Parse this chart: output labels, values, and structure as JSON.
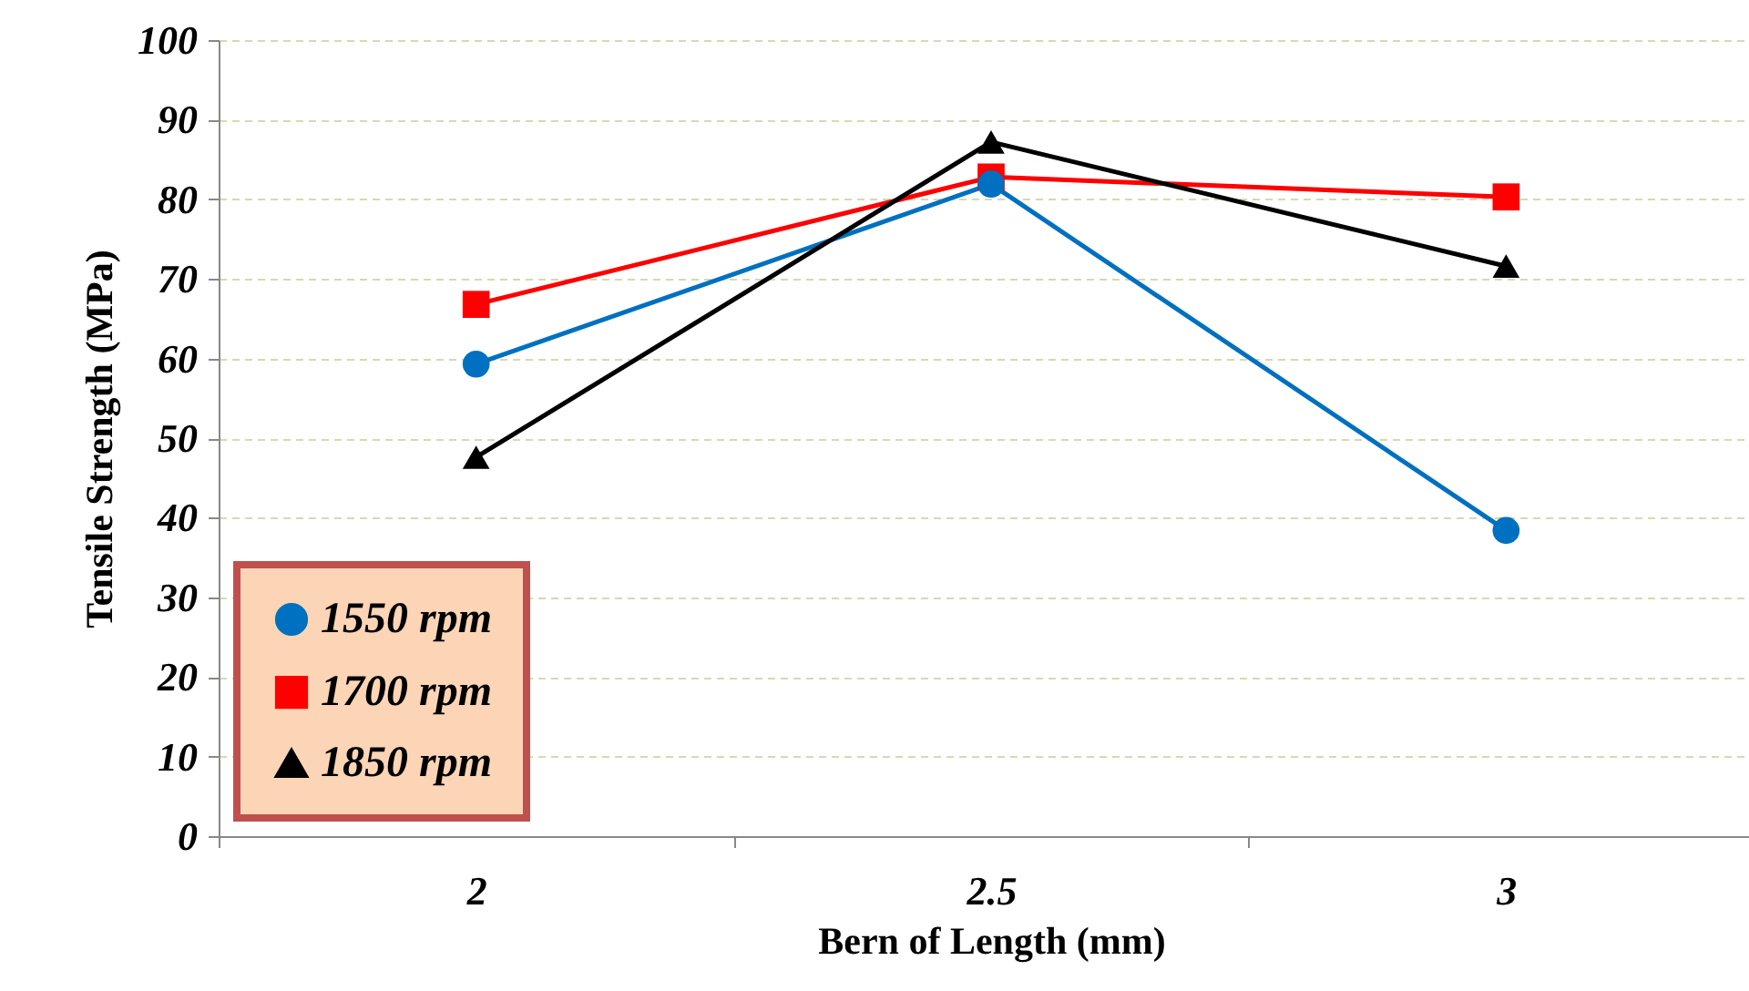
{
  "chart_data": {
    "type": "line",
    "xlabel": "Bern of Length (mm)",
    "ylabel": "Tensile Strength (MPa)",
    "categories": [
      "2",
      "2.5",
      "3"
    ],
    "series": [
      {
        "name": "1550 rpm",
        "color": "#0070c0",
        "marker": "circle",
        "values": [
          59.3,
          81.9,
          38.4
        ]
      },
      {
        "name": "1700 rpm",
        "color": "#ff0000",
        "marker": "square",
        "values": [
          66.8,
          82.8,
          80.3
        ]
      },
      {
        "name": "1850 rpm",
        "color": "#000000",
        "marker": "triangle",
        "values": [
          47.6,
          87.2,
          71.6
        ]
      }
    ],
    "ylim": [
      0,
      100
    ],
    "yticks": [
      0,
      10,
      20,
      30,
      40,
      50,
      60,
      70,
      80,
      90,
      100
    ],
    "grid": "y",
    "legend": "bottom left"
  }
}
